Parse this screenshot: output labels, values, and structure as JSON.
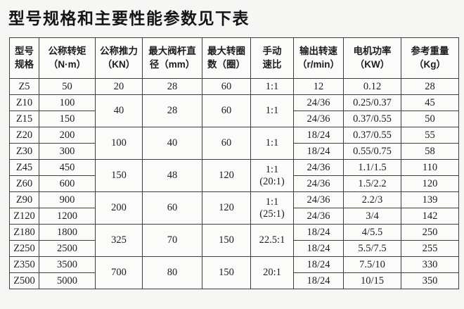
{
  "page": {
    "title": "型号规格和主要性能参数见下表"
  },
  "table": {
    "headers": [
      "型号\n规格",
      "公称转矩\n（N·m）",
      "公称推力\n（KN）",
      "最大阀杆直\n径（mm）",
      "最大转圈\n数（圈）",
      "手动\n速比",
      "输出转速\n（r/min）",
      "电机功率\n（KW）",
      "参考重量\n（Kg）"
    ],
    "rows": [
      {
        "cells": [
          {
            "text": "Z5"
          },
          {
            "text": "50"
          },
          {
            "text": "20"
          },
          {
            "text": "28"
          },
          {
            "text": "60"
          },
          {
            "text": "1:1"
          },
          {
            "text": "12"
          },
          {
            "text": "0.12"
          },
          {
            "text": "28"
          }
        ]
      },
      {
        "cells": [
          {
            "text": "Z10"
          },
          {
            "text": "100"
          },
          {
            "text": "40",
            "rowspan": 2
          },
          {
            "text": "28",
            "rowspan": 2
          },
          {
            "text": "60",
            "rowspan": 2
          },
          {
            "text": "1:1",
            "rowspan": 2
          },
          {
            "text": "24/36"
          },
          {
            "text": "0.25/0.37"
          },
          {
            "text": "45"
          }
        ]
      },
      {
        "cells": [
          {
            "text": "Z15"
          },
          {
            "text": "150"
          },
          {
            "text": "24/36"
          },
          {
            "text": "0.37/0.55"
          },
          {
            "text": "50"
          }
        ]
      },
      {
        "cells": [
          {
            "text": "Z20"
          },
          {
            "text": "200"
          },
          {
            "text": "100",
            "rowspan": 2
          },
          {
            "text": "40",
            "rowspan": 2
          },
          {
            "text": "60",
            "rowspan": 2
          },
          {
            "text": "1:1",
            "rowspan": 2
          },
          {
            "text": "18/24"
          },
          {
            "text": "0.37/0.55"
          },
          {
            "text": "55"
          }
        ]
      },
      {
        "cells": [
          {
            "text": "Z30"
          },
          {
            "text": "300"
          },
          {
            "text": "18/24"
          },
          {
            "text": "0.55/0.75"
          },
          {
            "text": "58"
          }
        ]
      },
      {
        "cells": [
          {
            "text": "Z45"
          },
          {
            "text": "450"
          },
          {
            "text": "150",
            "rowspan": 2
          },
          {
            "text": "48",
            "rowspan": 2
          },
          {
            "text": "120",
            "rowspan": 2
          },
          {
            "text": "1:1\n(20:1)",
            "rowspan": 2
          },
          {
            "text": "24/36"
          },
          {
            "text": "1.1/1.5"
          },
          {
            "text": "110"
          }
        ]
      },
      {
        "cells": [
          {
            "text": "Z60"
          },
          {
            "text": "600"
          },
          {
            "text": "24/36"
          },
          {
            "text": "1.5/2.2"
          },
          {
            "text": "120"
          }
        ]
      },
      {
        "cells": [
          {
            "text": "Z90"
          },
          {
            "text": "900"
          },
          {
            "text": "200",
            "rowspan": 2
          },
          {
            "text": "60",
            "rowspan": 2
          },
          {
            "text": "120",
            "rowspan": 2
          },
          {
            "text": "1:1\n(25:1)",
            "rowspan": 2
          },
          {
            "text": "24/36"
          },
          {
            "text": "2.2/3"
          },
          {
            "text": "139"
          }
        ]
      },
      {
        "cells": [
          {
            "text": "Z120"
          },
          {
            "text": "1200"
          },
          {
            "text": "24/36"
          },
          {
            "text": "3/4"
          },
          {
            "text": "142"
          }
        ]
      },
      {
        "cells": [
          {
            "text": "Z180"
          },
          {
            "text": "1800"
          },
          {
            "text": "325",
            "rowspan": 2
          },
          {
            "text": "70",
            "rowspan": 2
          },
          {
            "text": "150",
            "rowspan": 2
          },
          {
            "text": "22.5:1",
            "rowspan": 2
          },
          {
            "text": "18/24"
          },
          {
            "text": "4/5.5"
          },
          {
            "text": "250"
          }
        ]
      },
      {
        "cells": [
          {
            "text": "Z250"
          },
          {
            "text": "2500"
          },
          {
            "text": "18/24"
          },
          {
            "text": "5.5/7.5"
          },
          {
            "text": "255"
          }
        ]
      },
      {
        "cells": [
          {
            "text": "Z350"
          },
          {
            "text": "3500"
          },
          {
            "text": "700",
            "rowspan": 2
          },
          {
            "text": "80",
            "rowspan": 2
          },
          {
            "text": "150",
            "rowspan": 2
          },
          {
            "text": "20:1",
            "rowspan": 2
          },
          {
            "text": "18/24"
          },
          {
            "text": "7.5/10"
          },
          {
            "text": "330"
          }
        ]
      },
      {
        "cells": [
          {
            "text": "Z500"
          },
          {
            "text": "5000"
          },
          {
            "text": "18/24"
          },
          {
            "text": "10/15"
          },
          {
            "text": "350"
          }
        ]
      }
    ]
  }
}
